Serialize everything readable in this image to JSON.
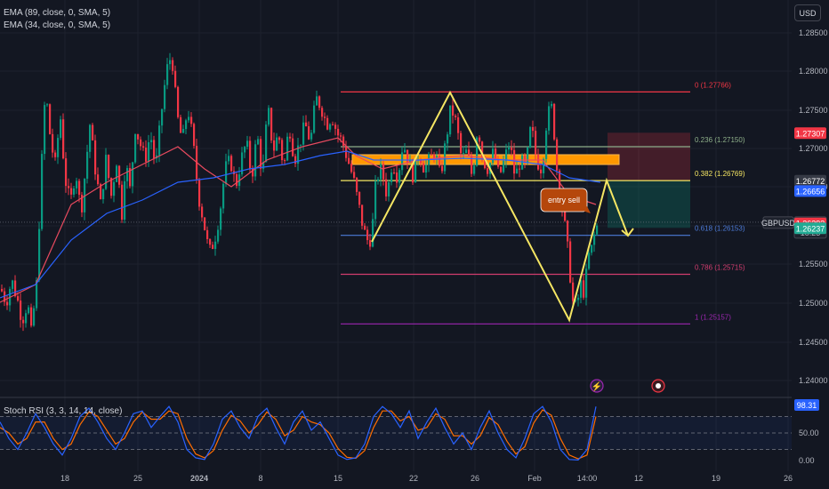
{
  "legend": {
    "ema1": "EMA (89, close, 0, SMA, 5)",
    "ema2": "EMA (34, close, 0, SMA, 5)",
    "stoch": "Stoch RSI (3, 3, 14, 14, close)"
  },
  "currency": "USD",
  "annotation": "entry sell",
  "chart_data": {
    "type": "candlestick",
    "symbol": "GBPUSD",
    "x_ticks": [
      "18",
      "25",
      "2024",
      "8",
      "15",
      "22",
      "26",
      "Feb",
      "14:00",
      "12",
      "19",
      "26"
    ],
    "y_ticks": [
      "1.28500",
      "1.28000",
      "1.27500",
      "1.27000",
      "1.26500",
      "1.25500",
      "1.25000",
      "1.24500",
      "1.24000"
    ],
    "ylim": [
      1.2375,
      1.288
    ],
    "candle_path": [
      [
        0,
        1.2555
      ],
      [
        6,
        1.254
      ],
      [
        12,
        1.2565
      ],
      [
        18,
        1.2545
      ],
      [
        24,
        1.252
      ],
      [
        30,
        1.254
      ],
      [
        34,
        1.2505
      ],
      [
        40,
        1.256
      ],
      [
        46,
        1.27
      ],
      [
        50,
        1.278
      ],
      [
        56,
        1.272
      ],
      [
        62,
        1.269
      ],
      [
        66,
        1.276
      ],
      [
        72,
        1.268
      ],
      [
        78,
        1.265
      ],
      [
        84,
        1.269
      ],
      [
        90,
        1.264
      ],
      [
        96,
        1.27
      ],
      [
        100,
        1.274
      ],
      [
        106,
        1.269
      ],
      [
        112,
        1.265
      ],
      [
        118,
        1.27
      ],
      [
        124,
        1.266
      ],
      [
        130,
        1.27
      ],
      [
        136,
        1.264
      ],
      [
        140,
        1.27
      ],
      [
        146,
        1.266
      ],
      [
        150,
        1.274
      ],
      [
        156,
        1.272
      ],
      [
        162,
        1.27
      ],
      [
        168,
        1.273
      ],
      [
        174,
        1.269
      ],
      [
        180,
        1.275
      ],
      [
        186,
        1.28
      ],
      [
        192,
        1.282
      ],
      [
        198,
        1.275
      ],
      [
        204,
        1.272
      ],
      [
        210,
        1.276
      ],
      [
        216,
        1.272
      ],
      [
        222,
        1.266
      ],
      [
        228,
        1.263
      ],
      [
        234,
        1.2595
      ],
      [
        240,
        1.261
      ],
      [
        246,
        1.264
      ],
      [
        252,
        1.269
      ],
      [
        258,
        1.27
      ],
      [
        264,
        1.267
      ],
      [
        270,
        1.27
      ],
      [
        276,
        1.272
      ],
      [
        282,
        1.268
      ],
      [
        288,
        1.273
      ],
      [
        294,
        1.268
      ],
      [
        300,
        1.276
      ],
      [
        306,
        1.271
      ],
      [
        312,
        1.273
      ],
      [
        318,
        1.269
      ],
      [
        324,
        1.274
      ],
      [
        330,
        1.27
      ],
      [
        336,
        1.272
      ],
      [
        342,
        1.274
      ],
      [
        348,
        1.272
      ],
      [
        354,
        1.277
      ],
      [
        360,
        1.276
      ],
      [
        366,
        1.274
      ],
      [
        372,
        1.275
      ],
      [
        378,
        1.273
      ],
      [
        384,
        1.272
      ],
      [
        390,
        1.27
      ],
      [
        396,
        1.268
      ],
      [
        402,
        1.265
      ],
      [
        408,
        1.262
      ],
      [
        414,
        1.2605
      ],
      [
        418,
        1.263
      ],
      [
        422,
        1.268
      ],
      [
        428,
        1.269
      ],
      [
        434,
        1.266
      ],
      [
        440,
        1.27
      ],
      [
        446,
        1.268
      ],
      [
        452,
        1.272
      ],
      [
        458,
        1.27
      ],
      [
        464,
        1.268
      ],
      [
        470,
        1.271
      ],
      [
        476,
        1.269
      ],
      [
        482,
        1.27
      ],
      [
        488,
        1.271
      ],
      [
        494,
        1.268
      ],
      [
        500,
        1.272
      ],
      [
        506,
        1.276
      ],
      [
        512,
        1.274
      ],
      [
        518,
        1.27
      ],
      [
        524,
        1.271
      ],
      [
        530,
        1.268
      ],
      [
        536,
        1.274
      ],
      [
        542,
        1.27
      ],
      [
        548,
        1.269
      ],
      [
        554,
        1.271
      ],
      [
        560,
        1.268
      ],
      [
        566,
        1.27
      ],
      [
        572,
        1.272
      ],
      [
        578,
        1.268
      ],
      [
        584,
        1.27
      ],
      [
        590,
        1.269
      ],
      [
        596,
        1.274
      ],
      [
        602,
        1.27
      ],
      [
        608,
        1.269
      ],
      [
        614,
        1.275
      ],
      [
        620,
        1.276
      ],
      [
        624,
        1.27
      ],
      [
        628,
        1.266
      ],
      [
        632,
        1.264
      ],
      [
        636,
        1.261
      ],
      [
        640,
        1.257
      ],
      [
        644,
        1.253
      ],
      [
        648,
        1.254
      ],
      [
        652,
        1.256
      ],
      [
        656,
        1.255
      ],
      [
        660,
        1.259
      ],
      [
        664,
        1.26
      ],
      [
        668,
        1.262
      ],
      [
        672,
        1.263
      ]
    ],
    "ema34": [
      [
        0,
        1.254
      ],
      [
        40,
        1.256
      ],
      [
        80,
        1.265
      ],
      [
        120,
        1.2675
      ],
      [
        160,
        1.2695
      ],
      [
        200,
        1.2715
      ],
      [
        230,
        1.269
      ],
      [
        260,
        1.267
      ],
      [
        300,
        1.27
      ],
      [
        340,
        1.2715
      ],
      [
        380,
        1.2725
      ],
      [
        400,
        1.2705
      ],
      [
        430,
        1.269
      ],
      [
        470,
        1.27
      ],
      [
        520,
        1.2705
      ],
      [
        570,
        1.27
      ],
      [
        610,
        1.27
      ],
      [
        640,
        1.266
      ],
      [
        670,
        1.265
      ]
    ],
    "ema89": [
      [
        0,
        1.2545
      ],
      [
        40,
        1.256
      ],
      [
        80,
        1.261
      ],
      [
        120,
        1.264
      ],
      [
        160,
        1.2655
      ],
      [
        200,
        1.2675
      ],
      [
        240,
        1.268
      ],
      [
        280,
        1.269
      ],
      [
        320,
        1.2695
      ],
      [
        360,
        1.2705
      ],
      [
        390,
        1.271
      ],
      [
        420,
        1.27
      ],
      [
        470,
        1.27
      ],
      [
        520,
        1.2702
      ],
      [
        570,
        1.27
      ],
      [
        610,
        1.2695
      ],
      [
        640,
        1.268
      ],
      [
        675,
        1.2675
      ]
    ],
    "fib_levels": [
      {
        "label": "0 (1.27766)",
        "value": 1.27766,
        "color": "#f23645"
      },
      {
        "label": "0.236 (1.27150)",
        "value": 1.2715,
        "color": "#8fb08a"
      },
      {
        "label": "0.382 (1.26769)",
        "value": 1.26769,
        "color": "#f5e663"
      },
      {
        "label": "0.618 (1.26153)",
        "value": 1.26153,
        "color": "#4d7bd8"
      },
      {
        "label": "0.786 (1.25715)",
        "value": 1.25715,
        "color": "#d23c6e"
      },
      {
        "label": "1 (1.25157)",
        "value": 1.25157,
        "color": "#9c27b0"
      }
    ],
    "resistance_zone": [
      1.2695,
      1.2706
    ],
    "short_position": {
      "entry": 1.26772,
      "stop": 1.27307,
      "target": 1.26237
    },
    "pattern_line": [
      [
        418,
        1.2608
      ],
      [
        506,
        1.2776
      ],
      [
        640,
        1.252
      ],
      [
        682,
        1.2677
      ],
      [
        706,
        1.2615
      ]
    ],
    "price_badges": [
      {
        "text": "1.27307",
        "value": 1.27307,
        "bg": "#f23645",
        "fg": "#ffffff"
      },
      {
        "text": "1.26772",
        "value": 1.26772,
        "bg": "#363a45",
        "fg": "#ffffff"
      },
      {
        "text": "1.26656",
        "value": 1.26656,
        "bg": "#2962ff",
        "fg": "#ffffff"
      },
      {
        "text": "1.26301",
        "value": 1.26301,
        "bg": "#1e222d",
        "fg": "#ffffff",
        "extra": "18:23",
        "symbol": "GBPUSD"
      },
      {
        "text": "1.26293",
        "value": 1.26293,
        "bg": "#f23645",
        "fg": "#ffffff"
      },
      {
        "text": "1.26237",
        "value": 1.26237,
        "bg": "#22ab94",
        "fg": "#ffffff"
      }
    ],
    "stoch_rsi": {
      "value": "98.31",
      "y_ticks": [
        "50.00",
        "0.00"
      ],
      "k": [
        [
          0,
          70
        ],
        [
          10,
          40
        ],
        [
          20,
          20
        ],
        [
          30,
          50
        ],
        [
          40,
          85
        ],
        [
          50,
          60
        ],
        [
          60,
          30
        ],
        [
          70,
          10
        ],
        [
          80,
          40
        ],
        [
          90,
          80
        ],
        [
          100,
          95
        ],
        [
          110,
          70
        ],
        [
          120,
          40
        ],
        [
          130,
          20
        ],
        [
          140,
          50
        ],
        [
          150,
          85
        ],
        [
          160,
          90
        ],
        [
          170,
          60
        ],
        [
          180,
          80
        ],
        [
          190,
          98
        ],
        [
          200,
          70
        ],
        [
          210,
          20
        ],
        [
          220,
          5
        ],
        [
          230,
          2
        ],
        [
          240,
          30
        ],
        [
          250,
          75
        ],
        [
          260,
          90
        ],
        [
          270,
          60
        ],
        [
          280,
          40
        ],
        [
          290,
          80
        ],
        [
          300,
          95
        ],
        [
          310,
          60
        ],
        [
          320,
          30
        ],
        [
          330,
          70
        ],
        [
          340,
          90
        ],
        [
          350,
          55
        ],
        [
          360,
          70
        ],
        [
          370,
          40
        ],
        [
          380,
          10
        ],
        [
          390,
          2
        ],
        [
          400,
          5
        ],
        [
          410,
          30
        ],
        [
          420,
          80
        ],
        [
          430,
          98
        ],
        [
          440,
          85
        ],
        [
          450,
          60
        ],
        [
          460,
          90
        ],
        [
          470,
          40
        ],
        [
          480,
          70
        ],
        [
          490,
          95
        ],
        [
          500,
          60
        ],
        [
          510,
          30
        ],
        [
          520,
          50
        ],
        [
          530,
          20
        ],
        [
          540,
          60
        ],
        [
          550,
          90
        ],
        [
          560,
          50
        ],
        [
          570,
          20
        ],
        [
          580,
          5
        ],
        [
          590,
          40
        ],
        [
          600,
          85
        ],
        [
          610,
          98
        ],
        [
          620,
          70
        ],
        [
          630,
          20
        ],
        [
          640,
          2
        ],
        [
          650,
          1
        ],
        [
          660,
          20
        ],
        [
          670,
          98
        ]
      ],
      "d": [
        [
          0,
          60
        ],
        [
          10,
          50
        ],
        [
          20,
          30
        ],
        [
          30,
          40
        ],
        [
          40,
          70
        ],
        [
          50,
          70
        ],
        [
          60,
          40
        ],
        [
          70,
          20
        ],
        [
          80,
          30
        ],
        [
          90,
          65
        ],
        [
          100,
          88
        ],
        [
          110,
          80
        ],
        [
          120,
          55
        ],
        [
          130,
          30
        ],
        [
          140,
          40
        ],
        [
          150,
          70
        ],
        [
          160,
          88
        ],
        [
          170,
          75
        ],
        [
          180,
          75
        ],
        [
          190,
          90
        ],
        [
          200,
          85
        ],
        [
          210,
          40
        ],
        [
          220,
          12
        ],
        [
          230,
          5
        ],
        [
          240,
          18
        ],
        [
          250,
          55
        ],
        [
          260,
          82
        ],
        [
          270,
          72
        ],
        [
          280,
          50
        ],
        [
          290,
          65
        ],
        [
          300,
          88
        ],
        [
          310,
          75
        ],
        [
          320,
          45
        ],
        [
          330,
          55
        ],
        [
          340,
          80
        ],
        [
          350,
          70
        ],
        [
          360,
          65
        ],
        [
          370,
          50
        ],
        [
          380,
          22
        ],
        [
          390,
          6
        ],
        [
          400,
          4
        ],
        [
          410,
          18
        ],
        [
          420,
          60
        ],
        [
          430,
          90
        ],
        [
          440,
          90
        ],
        [
          450,
          72
        ],
        [
          460,
          80
        ],
        [
          470,
          55
        ],
        [
          480,
          60
        ],
        [
          490,
          85
        ],
        [
          500,
          75
        ],
        [
          510,
          45
        ],
        [
          520,
          45
        ],
        [
          530,
          30
        ],
        [
          540,
          45
        ],
        [
          550,
          78
        ],
        [
          560,
          65
        ],
        [
          570,
          35
        ],
        [
          580,
          12
        ],
        [
          590,
          25
        ],
        [
          600,
          68
        ],
        [
          610,
          92
        ],
        [
          620,
          82
        ],
        [
          630,
          40
        ],
        [
          640,
          10
        ],
        [
          650,
          3
        ],
        [
          660,
          10
        ],
        [
          670,
          80
        ]
      ]
    }
  }
}
